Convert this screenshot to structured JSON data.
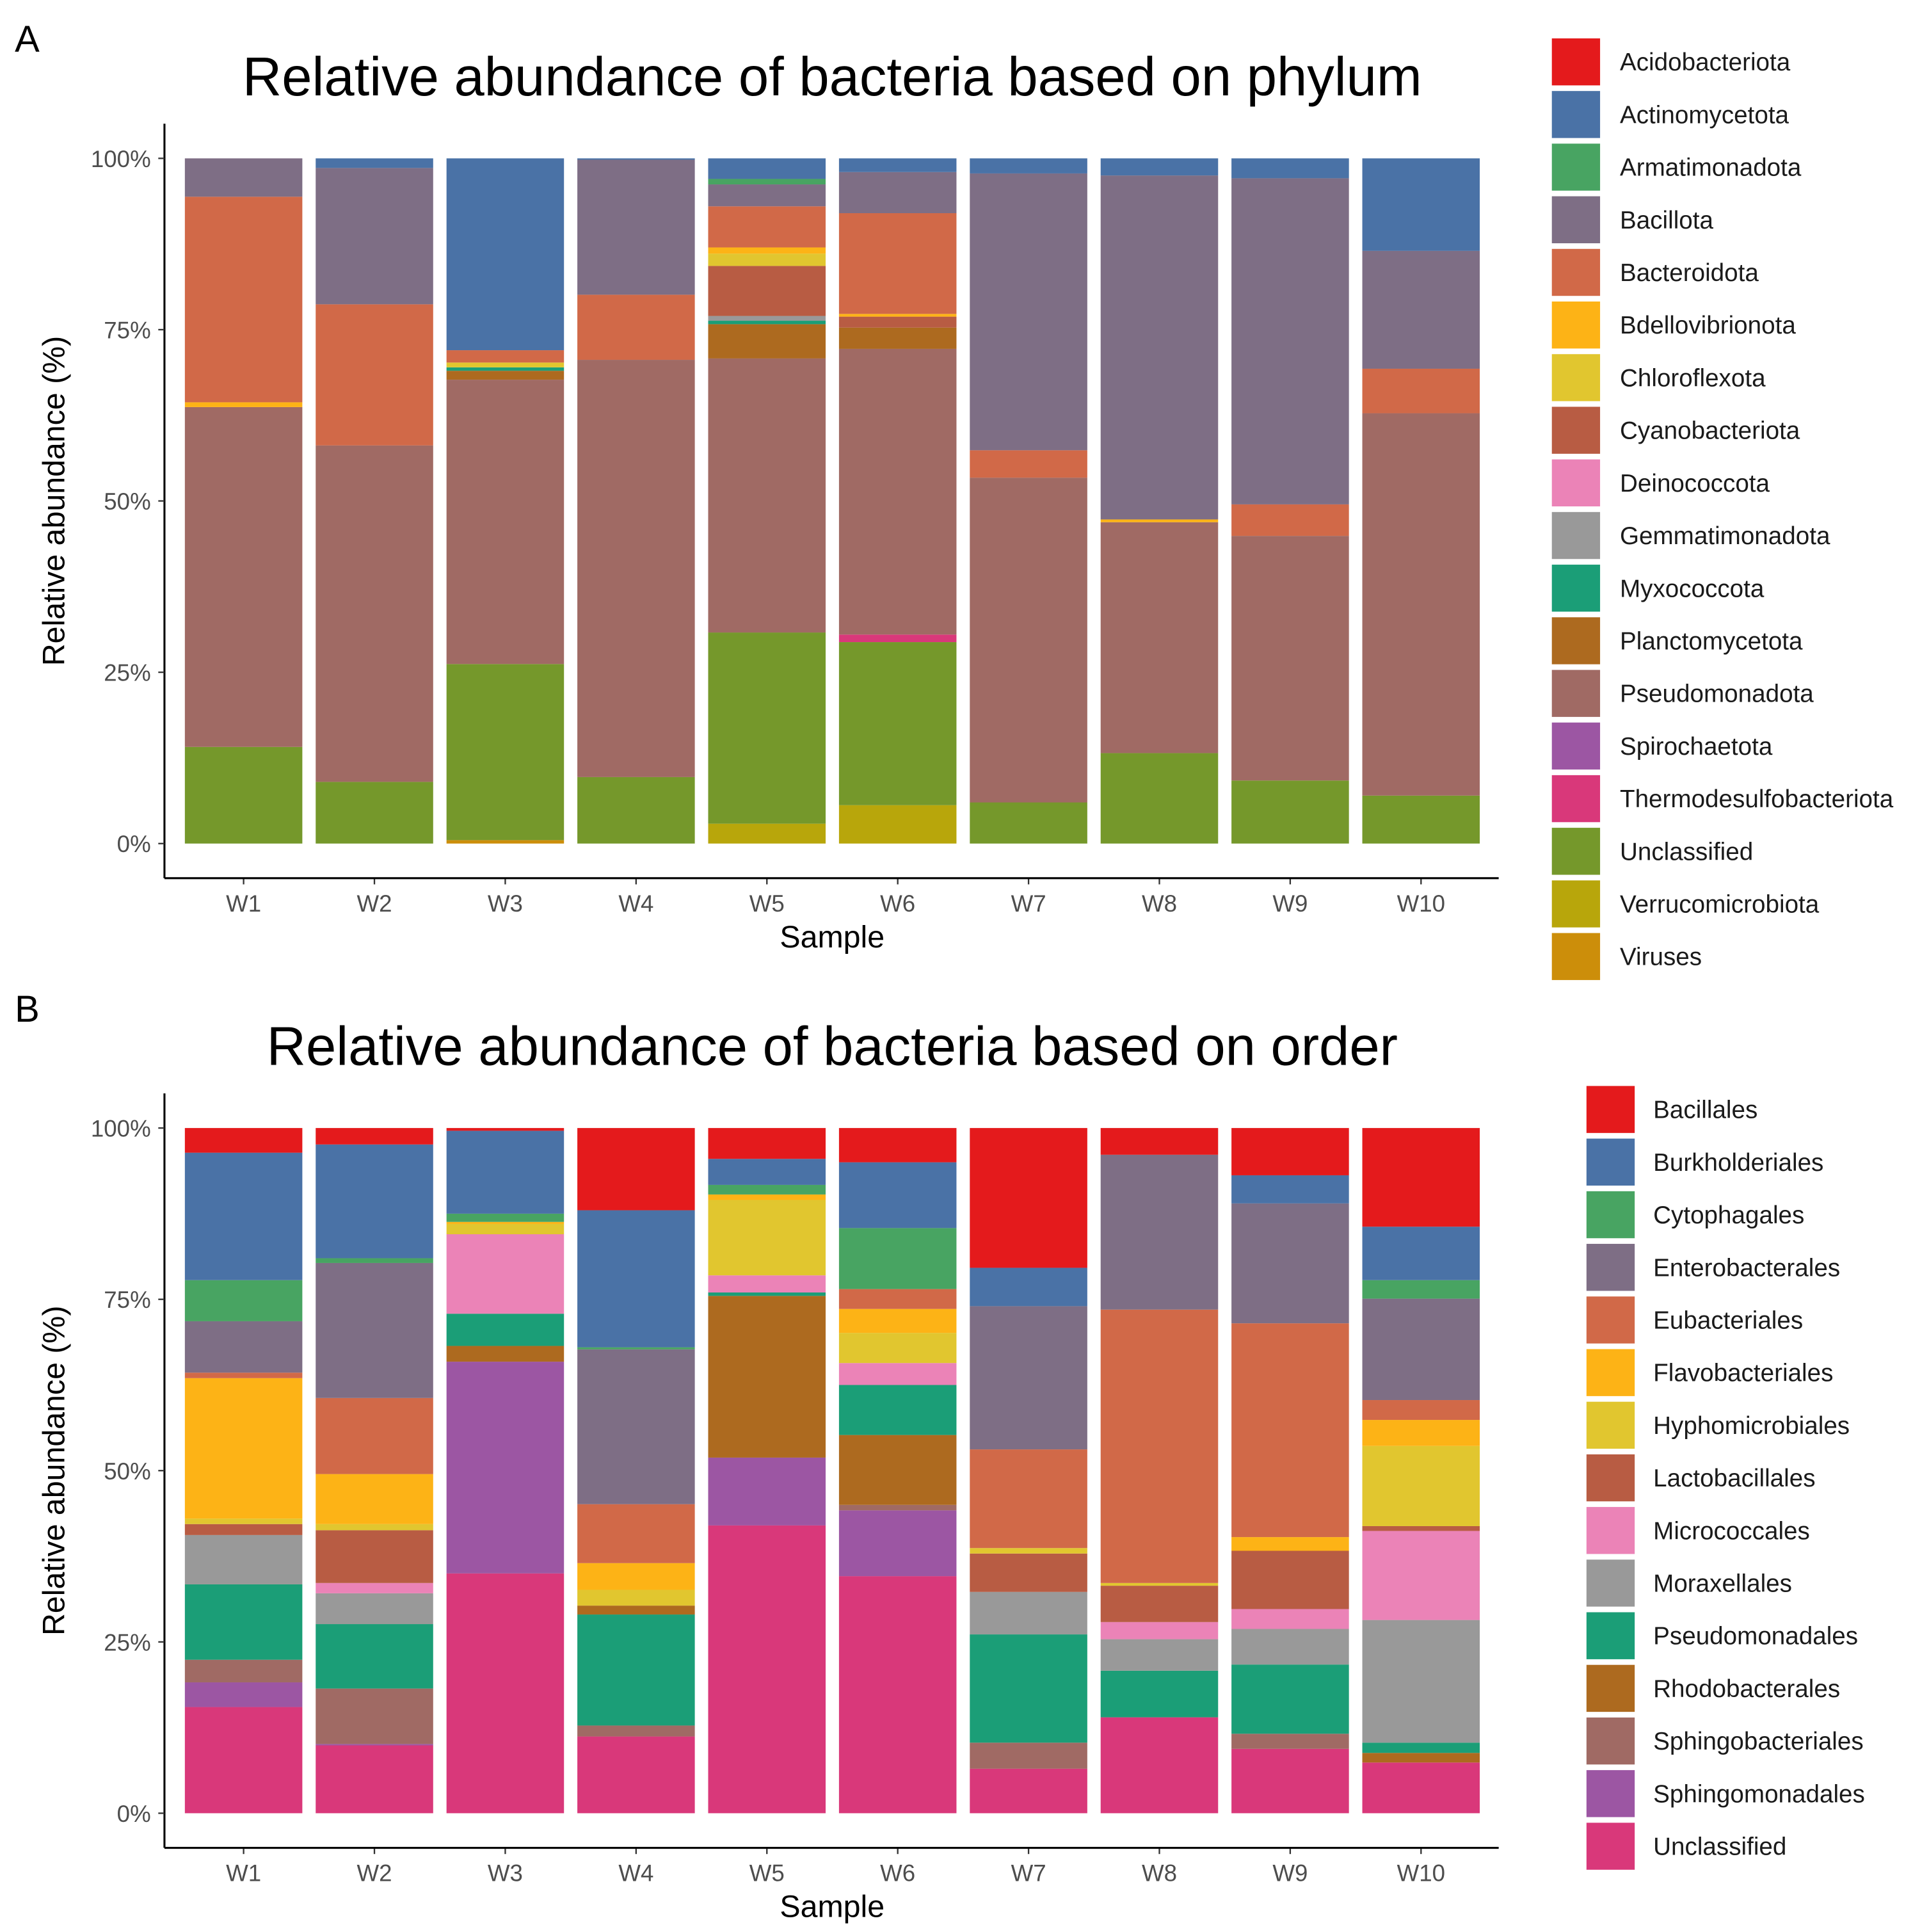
{
  "chart_data": [
    {
      "type": "bar",
      "stacked": true,
      "panel_label": "A",
      "title": "Relative abundance of bacteria based on phylum",
      "xlabel": "Sample",
      "ylabel": "Relative abundance (%)",
      "ylim": [
        0,
        100
      ],
      "yticks": [
        "0%",
        "25%",
        "50%",
        "75%",
        "100%"
      ],
      "categories": [
        "W1",
        "W2",
        "W3",
        "W4",
        "W5",
        "W6",
        "W7",
        "W8",
        "W9",
        "W10"
      ],
      "legend_position": "right",
      "legend": [
        {
          "name": "Acidobacteriota",
          "color": "#E41A1C"
        },
        {
          "name": "Actinomycetota",
          "color": "#4A72A6"
        },
        {
          "name": "Armatimonadota",
          "color": "#48A462"
        },
        {
          "name": "Bacillota",
          "color": "#7E6E85"
        },
        {
          "name": "Bacteroidota",
          "color": "#D16948"
        },
        {
          "name": "Bdellovibrionota",
          "color": "#FDB316"
        },
        {
          "name": "Chloroflexota",
          "color": "#E1C62F"
        },
        {
          "name": "Cyanobacteriota",
          "color": "#B85C43"
        },
        {
          "name": "Deinococcota",
          "color": "#EB83B7"
        },
        {
          "name": "Gemmatimonadota",
          "color": "#999999"
        },
        {
          "name": "Myxococcota",
          "color": "#1B9E77"
        },
        {
          "name": "Planctomycetota",
          "color": "#AD6A1F"
        },
        {
          "name": "Pseudomonadota",
          "color": "#A06A64"
        },
        {
          "name": "Spirochaetota",
          "color": "#9C56A3"
        },
        {
          "name": "Thermodesulfobacteriota",
          "color": "#D9387A"
        },
        {
          "name": "Unclassified",
          "color": "#75982B"
        },
        {
          "name": "Verrucomicrobiota",
          "color": "#B8A60B"
        },
        {
          "name": "Viruses",
          "color": "#CC8E0A"
        }
      ],
      "note": "stacks list [taxon, cumulative upper bound %] from bottom",
      "stacks": [
        [
          [
            "Unclassified",
            14.1
          ],
          [
            "Pseudomonadota",
            63.7
          ],
          [
            "Bdellovibrionota",
            64.4
          ],
          [
            "Bacteroidota",
            94.4
          ],
          [
            "Bacillota",
            100
          ]
        ],
        [
          [
            "Unclassified",
            9.0
          ],
          [
            "Pseudomonadota",
            58.1
          ],
          [
            "Bacteroidota",
            78.7
          ],
          [
            "Bacillota",
            98.6
          ],
          [
            "Actinomycetota",
            100
          ]
        ],
        [
          [
            "Viruses",
            0.5
          ],
          [
            "Unclassified",
            26.2
          ],
          [
            "Pseudomonadota",
            67.7
          ],
          [
            "Planctomycetota",
            69.0
          ],
          [
            "Myxococcota",
            69.5
          ],
          [
            "Chloroflexota",
            70.2
          ],
          [
            "Bacteroidota",
            72.0
          ],
          [
            "Actinomycetota",
            100
          ]
        ],
        [
          [
            "Unclassified",
            9.7
          ],
          [
            "Pseudomonadota",
            70.6
          ],
          [
            "Bacteroidota",
            80.1
          ],
          [
            "Bacillota",
            99.8
          ],
          [
            "Actinomycetota",
            100
          ]
        ],
        [
          [
            "Verrucomicrobiota",
            2.9
          ],
          [
            "Unclassified",
            30.8
          ],
          [
            "Pseudomonadota",
            70.8
          ],
          [
            "Planctomycetota",
            75.8
          ],
          [
            "Myxococcota",
            76.3
          ],
          [
            "Gemmatimonadota",
            77.0
          ],
          [
            "Cyanobacteriota",
            84.3
          ],
          [
            "Chloroflexota",
            86.1
          ],
          [
            "Bdellovibrionota",
            87.0
          ],
          [
            "Bacteroidota",
            93.0
          ],
          [
            "Bacillota",
            96.2
          ],
          [
            "Armatimonadota",
            97.0
          ],
          [
            "Actinomycetota",
            100
          ]
        ],
        [
          [
            "Verrucomicrobiota",
            5.6
          ],
          [
            "Unclassified",
            29.4
          ],
          [
            "Thermodesulfobacteriota",
            30.5
          ],
          [
            "Pseudomonadota",
            72.2
          ],
          [
            "Planctomycetota",
            75.3
          ],
          [
            "Cyanobacteriota",
            76.9
          ],
          [
            "Bdellovibrionota",
            77.3
          ],
          [
            "Bacteroidota",
            92.0
          ],
          [
            "Bacillota",
            98.0
          ],
          [
            "Actinomycetota",
            100
          ]
        ],
        [
          [
            "Unclassified",
            6.0
          ],
          [
            "Pseudomonadota",
            53.4
          ],
          [
            "Bacteroidota",
            57.4
          ],
          [
            "Bacillota",
            97.8
          ],
          [
            "Actinomycetota",
            100
          ]
        ],
        [
          [
            "Unclassified",
            13.2
          ],
          [
            "Pseudomonadota",
            46.9
          ],
          [
            "Bdellovibrionota",
            47.3
          ],
          [
            "Bacillota",
            97.5
          ],
          [
            "Actinomycetota",
            100
          ]
        ],
        [
          [
            "Unclassified",
            9.2
          ],
          [
            "Pseudomonadota",
            44.9
          ],
          [
            "Bacteroidota",
            49.5
          ],
          [
            "Bacillota",
            97.1
          ],
          [
            "Actinomycetota",
            100
          ]
        ],
        [
          [
            "Unclassified",
            7.0
          ],
          [
            "Pseudomonadota",
            62.8
          ],
          [
            "Bacteroidota",
            69.3
          ],
          [
            "Bacillota",
            86.5
          ],
          [
            "Actinomycetota",
            100
          ]
        ]
      ]
    },
    {
      "type": "bar",
      "stacked": true,
      "panel_label": "B",
      "title": "Relative abundance of bacteria based on order",
      "xlabel": "Sample",
      "ylabel": "Relative abundance (%)",
      "ylim": [
        0,
        100
      ],
      "yticks": [
        "0%",
        "25%",
        "50%",
        "75%",
        "100%"
      ],
      "categories": [
        "W1",
        "W2",
        "W3",
        "W4",
        "W5",
        "W6",
        "W7",
        "W8",
        "W9",
        "W10"
      ],
      "legend_position": "right",
      "legend": [
        {
          "name": "Bacillales",
          "color": "#E41A1C"
        },
        {
          "name": "Burkholderiales",
          "color": "#4A72A6"
        },
        {
          "name": "Cytophagales",
          "color": "#48A462"
        },
        {
          "name": "Enterobacterales",
          "color": "#7E6E85"
        },
        {
          "name": "Eubacteriales",
          "color": "#D16948"
        },
        {
          "name": "Flavobacteriales",
          "color": "#FDB316"
        },
        {
          "name": "Hyphomicrobiales",
          "color": "#E1C62F"
        },
        {
          "name": "Lactobacillales",
          "color": "#B85C43"
        },
        {
          "name": "Micrococcales",
          "color": "#EB83B7"
        },
        {
          "name": "Moraxellales",
          "color": "#999999"
        },
        {
          "name": "Pseudomonadales",
          "color": "#1B9E77"
        },
        {
          "name": "Rhodobacterales",
          "color": "#AD6A1F"
        },
        {
          "name": "Sphingobacteriales",
          "color": "#A06A64"
        },
        {
          "name": "Sphingomonadales",
          "color": "#9C56A3"
        },
        {
          "name": "Unclassified",
          "color": "#D9387A"
        }
      ],
      "note": "stacks list [taxon, cumulative upper bound %] from bottom",
      "stacks": [
        [
          [
            "Unclassified",
            15.5
          ],
          [
            "Sphingomonadales",
            19.1
          ],
          [
            "Sphingobacteriales",
            22.4
          ],
          [
            "Pseudomonadales",
            33.4
          ],
          [
            "Moraxellales",
            40.6
          ],
          [
            "Lactobacillales",
            42.2
          ],
          [
            "Hyphomicrobiales",
            43.0
          ],
          [
            "Flavobacteriales",
            63.5
          ],
          [
            "Eubacteriales",
            64.3
          ],
          [
            "Enterobacterales",
            71.8
          ],
          [
            "Cytophagales",
            77.8
          ],
          [
            "Burkholderiales",
            96.4
          ],
          [
            "Bacillales",
            100
          ]
        ],
        [
          [
            "Unclassified",
            9.9
          ],
          [
            "Sphingomonadales",
            10.1
          ],
          [
            "Sphingobacteriales",
            18.2
          ],
          [
            "Pseudomonadales",
            27.6
          ],
          [
            "Moraxellales",
            32.1
          ],
          [
            "Micrococcales",
            33.6
          ],
          [
            "Lactobacillales",
            41.3
          ],
          [
            "Hyphomicrobiales",
            42.2
          ],
          [
            "Flavobacteriales",
            49.5
          ],
          [
            "Eubacteriales",
            60.6
          ],
          [
            "Enterobacterales",
            80.3
          ],
          [
            "Cytophagales",
            81.0
          ],
          [
            "Burkholderiales",
            97.6
          ],
          [
            "Bacillales",
            100
          ]
        ],
        [
          [
            "Unclassified",
            35.0
          ],
          [
            "Sphingomonadales",
            65.9
          ],
          [
            "Rhodobacterales",
            68.2
          ],
          [
            "Pseudomonadales",
            72.9
          ],
          [
            "Micrococcales",
            84.5
          ],
          [
            "Hyphomicrobiales",
            86.0
          ],
          [
            "Flavobacteriales",
            86.3
          ],
          [
            "Cytophagales",
            87.5
          ],
          [
            "Burkholderiales",
            99.6
          ],
          [
            "Bacillales",
            100
          ]
        ],
        [
          [
            "Unclassified",
            11.2
          ],
          [
            "Sphingobacteriales",
            12.8
          ],
          [
            "Pseudomonadales",
            29.0
          ],
          [
            "Rhodobacterales",
            30.3
          ],
          [
            "Hyphomicrobiales",
            32.6
          ],
          [
            "Flavobacteriales",
            36.5
          ],
          [
            "Eubacteriales",
            45.1
          ],
          [
            "Enterobacterales",
            67.7
          ],
          [
            "Cytophagales",
            68.0
          ],
          [
            "Burkholderiales",
            88.0
          ],
          [
            "Bacillales",
            100
          ]
        ],
        [
          [
            "Unclassified",
            42.0
          ],
          [
            "Sphingomonadales",
            51.9
          ],
          [
            "Rhodobacterales",
            75.5
          ],
          [
            "Pseudomonadales",
            76.0
          ],
          [
            "Micrococcales",
            78.5
          ],
          [
            "Hyphomicrobiales",
            89.5
          ],
          [
            "Flavobacteriales",
            90.3
          ],
          [
            "Cytophagales",
            91.7
          ],
          [
            "Burkholderiales",
            95.5
          ],
          [
            "Bacillales",
            100
          ]
        ],
        [
          [
            "Unclassified",
            34.6
          ],
          [
            "Sphingomonadales",
            44.2
          ],
          [
            "Sphingobacteriales",
            45.0
          ],
          [
            "Rhodobacterales",
            55.2
          ],
          [
            "Pseudomonadales",
            62.5
          ],
          [
            "Micrococcales",
            65.7
          ],
          [
            "Hyphomicrobiales",
            70.1
          ],
          [
            "Flavobacteriales",
            73.6
          ],
          [
            "Eubacteriales",
            76.5
          ],
          [
            "Cytophagales",
            85.4
          ],
          [
            "Burkholderiales",
            95.0
          ],
          [
            "Bacillales",
            100
          ]
        ],
        [
          [
            "Unclassified",
            6.5
          ],
          [
            "Sphingobacteriales",
            10.3
          ],
          [
            "Pseudomonadales",
            26.1
          ],
          [
            "Moraxellales",
            32.3
          ],
          [
            "Lactobacillales",
            37.9
          ],
          [
            "Hyphomicrobiales",
            38.7
          ],
          [
            "Eubacteriales",
            53.1
          ],
          [
            "Enterobacterales",
            74.0
          ],
          [
            "Burkholderiales",
            79.6
          ],
          [
            "Bacillales",
            100
          ]
        ],
        [
          [
            "Unclassified",
            14.0
          ],
          [
            "Pseudomonadales",
            20.8
          ],
          [
            "Moraxellales",
            25.4
          ],
          [
            "Micrococcales",
            27.9
          ],
          [
            "Lactobacillales",
            33.2
          ],
          [
            "Hyphomicrobiales",
            33.6
          ],
          [
            "Eubacteriales",
            73.5
          ],
          [
            "Enterobacterales",
            96.1
          ],
          [
            "Bacillales",
            100
          ]
        ],
        [
          [
            "Unclassified",
            9.4
          ],
          [
            "Sphingobacteriales",
            11.6
          ],
          [
            "Pseudomonadales",
            21.7
          ],
          [
            "Moraxellales",
            26.9
          ],
          [
            "Micrococcales",
            29.8
          ],
          [
            "Lactobacillales",
            38.3
          ],
          [
            "Flavobacteriales",
            40.3
          ],
          [
            "Eubacteriales",
            71.5
          ],
          [
            "Enterobacterales",
            89.0
          ],
          [
            "Burkholderiales",
            93.1
          ],
          [
            "Bacillales",
            100
          ]
        ],
        [
          [
            "Unclassified",
            7.4
          ],
          [
            "Rhodobacterales",
            8.8
          ],
          [
            "Pseudomonadales",
            10.3
          ],
          [
            "Moraxellales",
            28.2
          ],
          [
            "Micrococcales",
            41.2
          ],
          [
            "Lactobacillales",
            41.9
          ],
          [
            "Hyphomicrobiales",
            53.6
          ],
          [
            "Flavobacteriales",
            57.4
          ],
          [
            "Eubacteriales",
            60.3
          ],
          [
            "Enterobacterales",
            75.1
          ],
          [
            "Cytophagales",
            77.8
          ],
          [
            "Burkholderiales",
            85.6
          ],
          [
            "Bacillales",
            100
          ]
        ]
      ]
    }
  ]
}
